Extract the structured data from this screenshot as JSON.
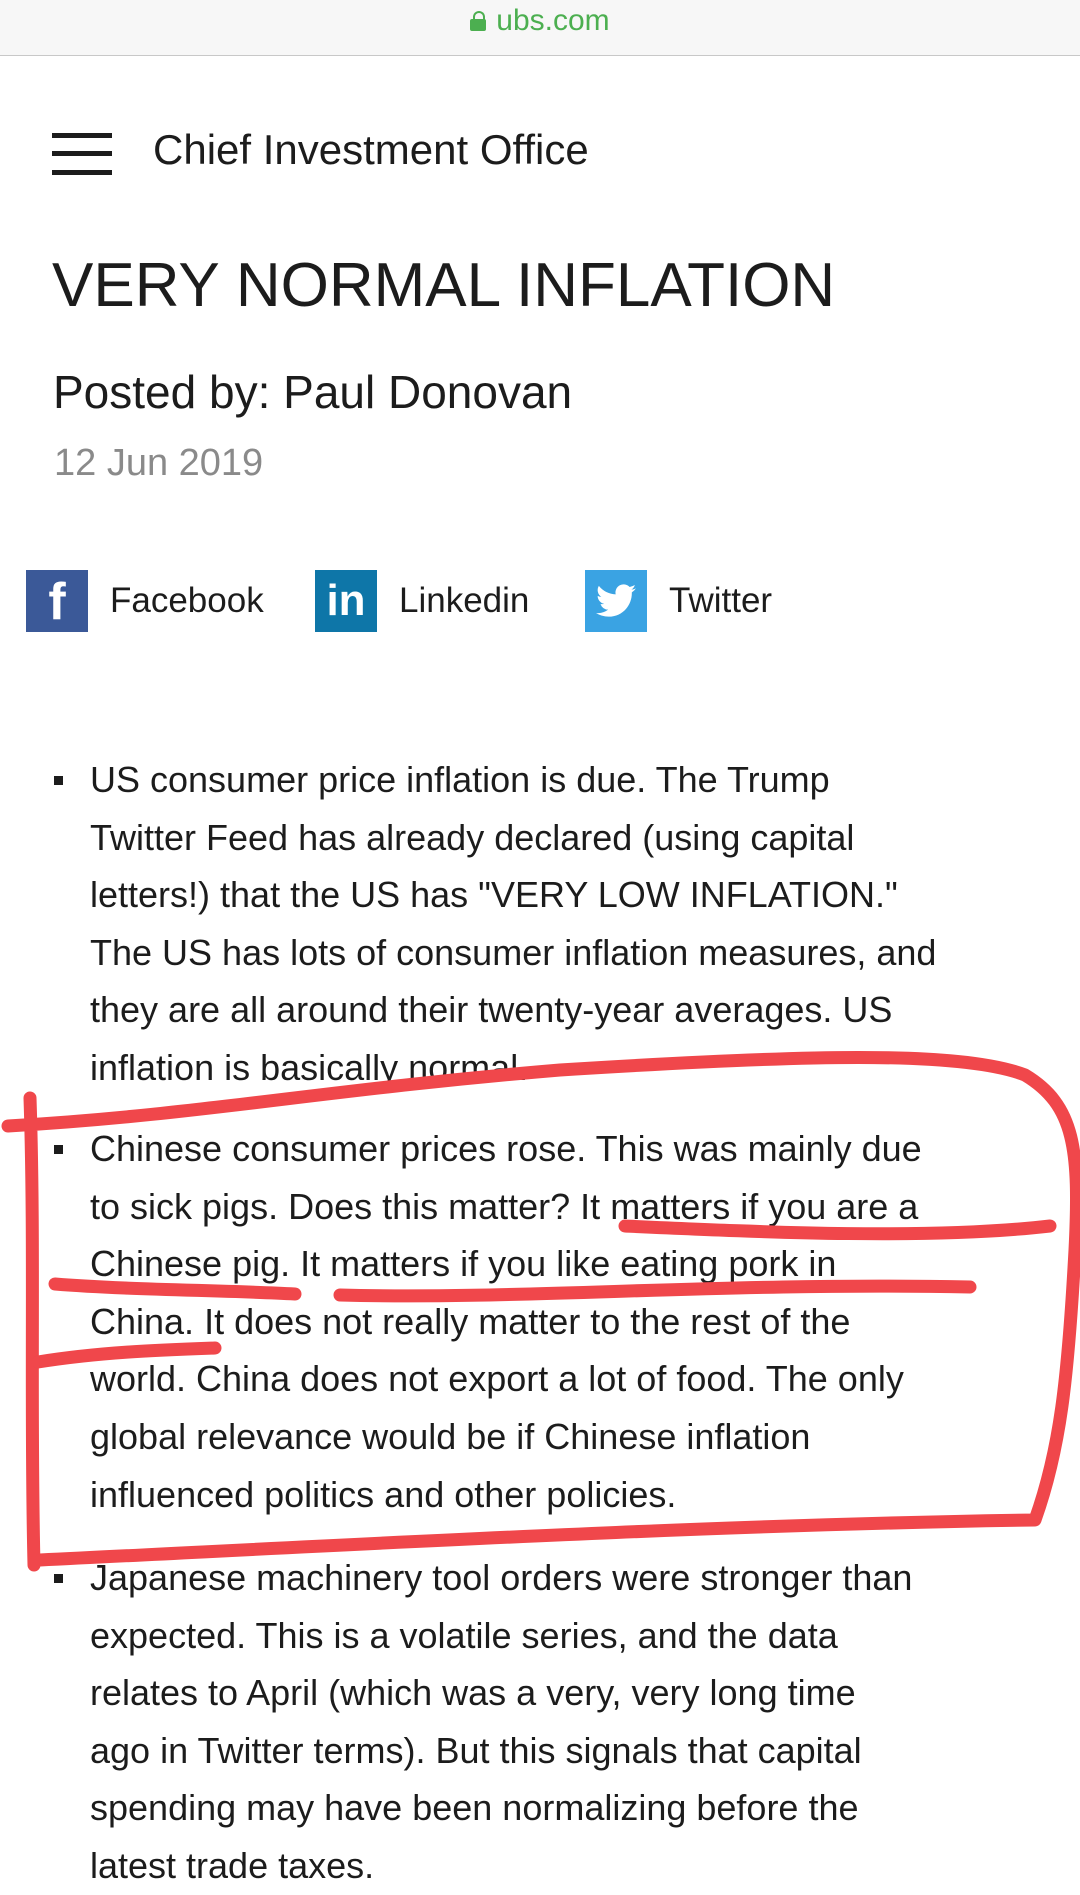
{
  "browser": {
    "url": "ubs.com"
  },
  "header": {
    "site_title": "Chief Investment Office"
  },
  "article": {
    "title": "VERY NORMAL INFLATION",
    "byline": "Posted by: Paul Donovan",
    "date": "12 Jun 2019"
  },
  "share": [
    {
      "label": "Facebook",
      "icon": "facebook-icon",
      "color": "#3b5998"
    },
    {
      "label": "Linkedin",
      "icon": "linkedin-icon",
      "color": "#0e76a8"
    },
    {
      "label": "Twitter",
      "icon": "twitter-icon",
      "color": "#3aa3e3"
    }
  ],
  "bullets": [
    {
      "lines": [
        "US consumer price inflation is due. The Trump",
        "Twitter Feed has already declared (using capital",
        "letters!) that the US has \"VERY LOW INFLATION.\"",
        "The US has lots of consumer inflation measures, and",
        "they are all around their twenty-year averages. US",
        "inflation is basically normal."
      ]
    },
    {
      "lines": [
        "Chinese consumer prices rose. This was mainly due",
        "to sick pigs. Does this matter? It matters if you are a",
        "Chinese pig. It matters if you like eating pork in",
        "China. It does not really matter to the rest of the",
        "world. China does not export a lot of food. The only",
        "global relevance would be if Chinese inflation",
        "influenced politics and other policies."
      ]
    },
    {
      "lines": [
        "Japanese machinery tool orders were stronger than",
        "expected. This is a volatile series, and the data",
        "relates to April (which was a very, very long time",
        "ago in Twitter terms). But this signals that capital",
        "spending may have been normalizing before the",
        "latest trade taxes."
      ]
    }
  ],
  "annotation": {
    "color": "#f0474b"
  }
}
